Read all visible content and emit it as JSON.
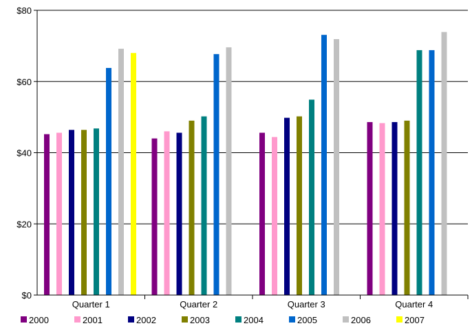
{
  "chart_data": {
    "type": "bar",
    "categories": [
      "Quarter 1",
      "Quarter 2",
      "Quarter 3",
      "Quarter 4"
    ],
    "ylim": [
      0,
      80
    ],
    "yticks": [
      0,
      20,
      40,
      60,
      80
    ],
    "ytick_labels": [
      "$0",
      "$20",
      "$40",
      "$60",
      "$80"
    ],
    "grid": true,
    "legend": "bottom",
    "series": [
      {
        "name": "2000",
        "color": "#800080",
        "values": [
          45.2,
          44.0,
          45.6,
          48.6
        ]
      },
      {
        "name": "2001",
        "color": "#ff99cc",
        "values": [
          45.6,
          46.0,
          44.4,
          48.3
        ]
      },
      {
        "name": "2002",
        "color": "#000080",
        "values": [
          46.4,
          45.6,
          49.8,
          48.6
        ]
      },
      {
        "name": "2003",
        "color": "#808000",
        "values": [
          46.4,
          49.0,
          50.2,
          49.0
        ]
      },
      {
        "name": "2004",
        "color": "#008080",
        "values": [
          46.8,
          50.2,
          54.9,
          68.8
        ]
      },
      {
        "name": "2005",
        "color": "#0066cc",
        "values": [
          63.8,
          67.7,
          73.1,
          68.8
        ]
      },
      {
        "name": "2006",
        "color": "#c0c0c0",
        "values": [
          69.2,
          69.6,
          71.9,
          73.9
        ]
      },
      {
        "name": "2007",
        "color": "#ffff00",
        "values": [
          68.0,
          null,
          null,
          null
        ]
      }
    ]
  }
}
